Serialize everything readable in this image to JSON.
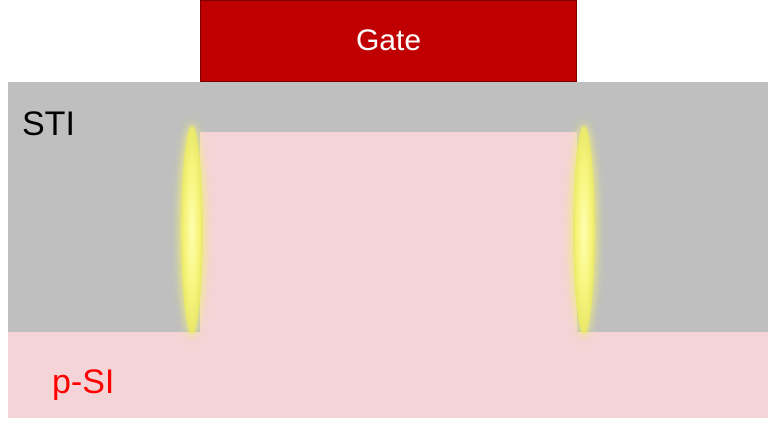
{
  "labels": {
    "gate": "Gate",
    "sti": "STI",
    "substrate": "p-SI"
  },
  "colors": {
    "gate_fill": "#c00000",
    "sti_fill": "#bfbfbf",
    "silicon_fill": "#f4d4d6",
    "substrate_label": "#ff0000",
    "glow": "#f4f27a"
  }
}
